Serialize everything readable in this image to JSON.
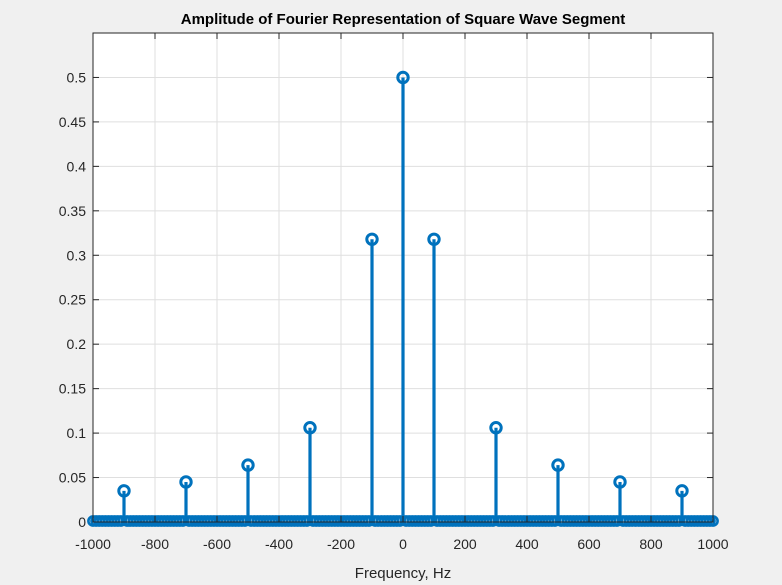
{
  "chart_data": {
    "type": "stem",
    "title": "Amplitude of Fourier Representation of Square Wave Segment",
    "xlabel": "Frequency, Hz",
    "ylabel": "",
    "xlim": [
      -1000,
      1000
    ],
    "ylim": [
      0,
      0.55
    ],
    "xticks": [
      -1000,
      -800,
      -600,
      -400,
      -200,
      0,
      200,
      400,
      600,
      800,
      1000
    ],
    "yticks": [
      0,
      0.05,
      0.1,
      0.15,
      0.2,
      0.25,
      0.3,
      0.35,
      0.4,
      0.45,
      0.5
    ],
    "ytick_labels": [
      "0",
      "0.05",
      "0.1",
      "0.15",
      "0.2",
      "0.25",
      "0.3",
      "0.35",
      "0.4",
      "0.45",
      "0.5"
    ],
    "grid": true,
    "color": "#0072BD",
    "baseline_marker_spacing_hz": 10,
    "peaks": {
      "x": [
        -900,
        -700,
        -500,
        -300,
        -100,
        0,
        100,
        300,
        500,
        700,
        900
      ],
      "y": [
        0.035,
        0.045,
        0.064,
        0.106,
        0.318,
        0.5,
        0.318,
        0.106,
        0.064,
        0.045,
        0.035
      ]
    }
  }
}
